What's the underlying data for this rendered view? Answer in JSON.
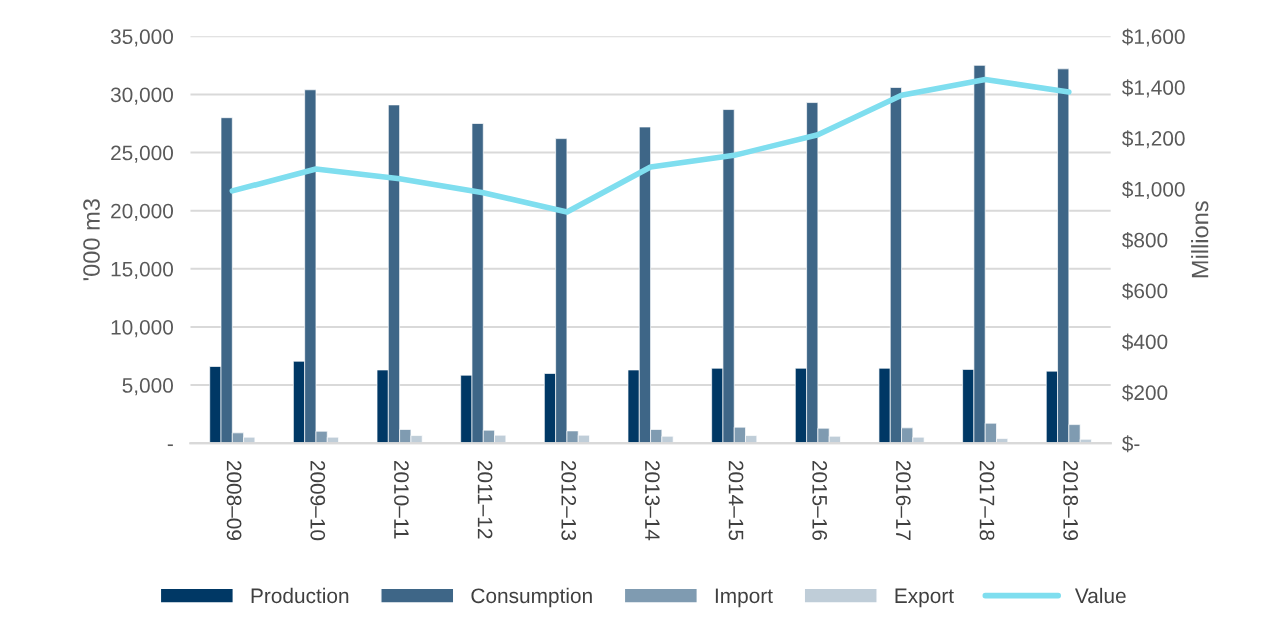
{
  "chart_data": {
    "type": "bar",
    "ylabel": "'000 m3",
    "y2label": "Millions",
    "categories": [
      "2008–09",
      "2009–10",
      "2010–11",
      "2011–12",
      "2012–13",
      "2013–14",
      "2014–15",
      "2015–16",
      "2016–17",
      "2017–18",
      "2018–19"
    ],
    "series": [
      {
        "name": "Production",
        "color": "#003865",
        "values": [
          6600,
          7050,
          6300,
          5850,
          6000,
          6300,
          6450,
          6450,
          6450,
          6350,
          6200
        ]
      },
      {
        "name": "Consumption",
        "color": "#3e6687",
        "values": [
          28000,
          30400,
          29100,
          27500,
          26200,
          27200,
          28700,
          29300,
          30600,
          32500,
          32200
        ]
      },
      {
        "name": "Import",
        "color": "#7f9bb1",
        "values": [
          890,
          1030,
          1180,
          1120,
          1060,
          1180,
          1380,
          1290,
          1320,
          1720,
          1600
        ]
      },
      {
        "name": "Export",
        "color": "#bfcdd8",
        "values": [
          520,
          520,
          660,
          690,
          690,
          600,
          660,
          600,
          520,
          400,
          340
        ]
      },
      {
        "name": "Value",
        "color": "#7fdeef",
        "type": "line",
        "axis": "y2",
        "values": [
          992,
          1078,
          1040,
          985,
          909,
          1086,
          1132,
          1213,
          1368,
          1430,
          1381
        ]
      }
    ],
    "ylim": [
      0,
      35000
    ],
    "yticks": [
      {
        "value": 0,
        "label": "-"
      },
      {
        "value": 5000,
        "label": "5,000"
      },
      {
        "value": 10000,
        "label": "10,000"
      },
      {
        "value": 15000,
        "label": "15,000"
      },
      {
        "value": 20000,
        "label": "20,000"
      },
      {
        "value": 25000,
        "label": "25,000"
      },
      {
        "value": 30000,
        "label": "30,000"
      },
      {
        "value": 35000,
        "label": "35,000"
      }
    ],
    "y2lim": [
      0,
      1600
    ],
    "y2ticks": [
      {
        "value": 0,
        "label": "$-"
      },
      {
        "value": 200,
        "label": "$200"
      },
      {
        "value": 400,
        "label": "$400"
      },
      {
        "value": 600,
        "label": "$600"
      },
      {
        "value": 800,
        "label": "$800"
      },
      {
        "value": 1000,
        "label": "$1,000"
      },
      {
        "value": 1200,
        "label": "$1,200"
      },
      {
        "value": 1400,
        "label": "$1,400"
      },
      {
        "value": 1600,
        "label": "$1,600"
      }
    ],
    "grid": "y",
    "legend": "bottom"
  }
}
